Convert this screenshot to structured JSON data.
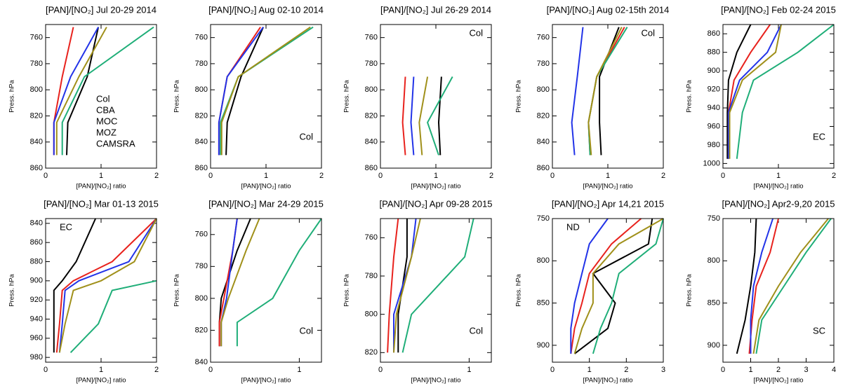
{
  "chart_data": [
    {
      "type": "line",
      "title": "[PAN]/[NO₂] Jul 20-29 2014",
      "xlabel": "[PAN]/[NO₂] ratio",
      "ylabel": "Press. hPa",
      "xlim": [
        0,
        2
      ],
      "xticks": [
        0,
        1,
        2
      ],
      "ylim": [
        860,
        750
      ],
      "yticks": [
        760,
        780,
        800,
        820,
        840,
        860
      ],
      "legend": true,
      "y": [
        752,
        790,
        825,
        850
      ],
      "series": [
        {
          "name": "Col",
          "color": "#000000",
          "values": [
            0.95,
            0.75,
            0.4,
            0.38
          ]
        },
        {
          "name": "CBA",
          "color": "#e8221d",
          "values": [
            0.5,
            0.3,
            0.15,
            0.15
          ]
        },
        {
          "name": "MOC",
          "color": "#1fae78",
          "values": [
            1.95,
            0.7,
            0.3,
            0.3
          ]
        },
        {
          "name": "MOZ",
          "color": "#2233e8",
          "values": [
            0.95,
            0.45,
            0.15,
            0.15
          ]
        },
        {
          "name": "CAMSRA",
          "color": "#a0901a",
          "values": [
            1.1,
            0.6,
            0.2,
            0.2
          ]
        }
      ]
    },
    {
      "type": "line",
      "title": "[PAN]/[NO₂] Aug 02-10 2014",
      "xlabel": "[PAN]/[NO₂] ratio",
      "ylabel": "Press. hPa",
      "xlim": [
        0,
        2
      ],
      "xticks": [
        0,
        1,
        2
      ],
      "ylim": [
        860,
        750
      ],
      "yticks": [
        760,
        780,
        800,
        820,
        840,
        860
      ],
      "annotation": "Col",
      "y": [
        752,
        790,
        825,
        850
      ],
      "series": [
        {
          "name": "Col",
          "color": "#000000",
          "values": [
            0.95,
            0.55,
            0.3,
            0.28
          ]
        },
        {
          "name": "CBA",
          "color": "#e8221d",
          "values": [
            0.9,
            0.3,
            0.15,
            0.15
          ]
        },
        {
          "name": "MOC",
          "color": "#1fae78",
          "values": [
            1.85,
            0.5,
            0.18,
            0.18
          ]
        },
        {
          "name": "MOZ",
          "color": "#2233e8",
          "values": [
            0.95,
            0.3,
            0.15,
            0.15
          ]
        },
        {
          "name": "CAMSRA",
          "color": "#a0901a",
          "values": [
            1.8,
            0.5,
            0.2,
            0.2
          ]
        }
      ]
    },
    {
      "type": "line",
      "title": "[PAN]/[NO₂] Jul 26-29 2014",
      "xlabel": "[PAN]/[NO₂] ratio",
      "ylabel": "Press. hPa",
      "xlim": [
        0,
        2
      ],
      "xticks": [
        0,
        1,
        2
      ],
      "ylim": [
        860,
        750
      ],
      "yticks": [
        760,
        780,
        800,
        820,
        840,
        860
      ],
      "annotation": "Col",
      "y": [
        790,
        825,
        850
      ],
      "series": [
        {
          "name": "Col",
          "color": "#000000",
          "values": [
            1.1,
            1.05,
            1.08
          ]
        },
        {
          "name": "CBA",
          "color": "#e8221d",
          "values": [
            0.45,
            0.4,
            0.45
          ]
        },
        {
          "name": "MOC",
          "color": "#1fae78",
          "values": [
            1.3,
            0.85,
            1.05
          ]
        },
        {
          "name": "MOZ",
          "color": "#2233e8",
          "values": [
            0.6,
            0.55,
            0.6
          ]
        },
        {
          "name": "CAMSRA",
          "color": "#a0901a",
          "values": [
            0.85,
            0.7,
            0.75
          ]
        }
      ]
    },
    {
      "type": "line",
      "title": "[PAN]/[NO₂] Aug 02-15th 2014",
      "xlabel": "[PAN]/[NO₂] ratio",
      "ylabel": "Press. hPa",
      "xlim": [
        0,
        2
      ],
      "xticks": [
        0,
        1,
        2
      ],
      "ylim": [
        860,
        750
      ],
      "yticks": [
        760,
        780,
        800,
        820,
        840,
        860
      ],
      "annotation": "Col",
      "y": [
        752,
        790,
        825,
        850
      ],
      "series": [
        {
          "name": "Col",
          "color": "#000000",
          "values": [
            1.2,
            0.85,
            0.85,
            0.88
          ]
        },
        {
          "name": "CBA",
          "color": "#e8221d",
          "values": [
            1.3,
            0.8,
            0.65,
            0.68
          ]
        },
        {
          "name": "MOC",
          "color": "#1fae78",
          "values": [
            1.35,
            0.8,
            0.65,
            0.68
          ]
        },
        {
          "name": "MOZ",
          "color": "#2233e8",
          "values": [
            0.55,
            0.45,
            0.35,
            0.4
          ]
        },
        {
          "name": "CAMSRA",
          "color": "#a0901a",
          "values": [
            1.25,
            0.8,
            0.65,
            0.7
          ]
        }
      ]
    },
    {
      "type": "line",
      "title": "[PAN]/[NO₂] Feb 02-24 2015",
      "xlabel": "[PAN]/[NO₂] ratio",
      "ylabel": "Press. hPa",
      "xlim": [
        0,
        2
      ],
      "xticks": [
        0,
        1,
        2
      ],
      "ylim": [
        1005,
        850
      ],
      "yticks": [
        860,
        880,
        900,
        920,
        940,
        960,
        980,
        1000
      ],
      "annotation": "EC",
      "y": [
        850,
        880,
        910,
        945,
        995
      ],
      "series": [
        {
          "name": "Col",
          "color": "#000000",
          "values": [
            0.5,
            0.25,
            0.1,
            0.08,
            0.08
          ]
        },
        {
          "name": "CBA",
          "color": "#e8221d",
          "values": [
            0.85,
            0.5,
            0.2,
            0.1,
            0.1
          ]
        },
        {
          "name": "MOC",
          "color": "#1fae78",
          "values": [
            2.0,
            1.35,
            0.55,
            0.35,
            0.25
          ]
        },
        {
          "name": "MOZ",
          "color": "#2233e8",
          "values": [
            1.05,
            0.8,
            0.3,
            0.1,
            0.1
          ]
        },
        {
          "name": "CAMSRA",
          "color": "#a0901a",
          "values": [
            1.05,
            0.95,
            0.35,
            0.12,
            0.12
          ]
        }
      ]
    },
    {
      "type": "line",
      "title": "[PAN]/[NO₂] Mar 01-13 2015",
      "xlabel": "[PAN]/[NO₂] ratio",
      "ylabel": "Press. hPa",
      "xlim": [
        0,
        2
      ],
      "xticks": [
        0,
        1,
        2
      ],
      "ylim": [
        985,
        835
      ],
      "yticks": [
        840,
        860,
        880,
        900,
        920,
        940,
        960,
        980
      ],
      "annotation": "EC",
      "y": [
        835,
        880,
        900,
        910,
        945,
        975
      ],
      "series": [
        {
          "name": "Col",
          "color": "#000000",
          "values": [
            0.9,
            0.55,
            0.3,
            0.15,
            0.15,
            0.15
          ]
        },
        {
          "name": "CBA",
          "color": "#e8221d",
          "values": [
            2.0,
            1.2,
            0.5,
            0.3,
            0.25,
            0.2
          ]
        },
        {
          "name": "MOC",
          "color": "#1fae78",
          "values": [
            null,
            null,
            2.0,
            1.2,
            0.95,
            0.45
          ]
        },
        {
          "name": "MOZ",
          "color": "#2233e8",
          "values": [
            2.0,
            1.5,
            0.6,
            0.35,
            0.3,
            0.25
          ]
        },
        {
          "name": "CAMSRA",
          "color": "#a0901a",
          "values": [
            2.0,
            1.6,
            1.0,
            0.5,
            0.35,
            0.25
          ]
        }
      ]
    },
    {
      "type": "line",
      "title": "[PAN]/[NO₂] Mar 24-29 2015",
      "xlabel": "[PAN]/[NO₂] ratio",
      "ylabel": "Press. hPa",
      "xlim": [
        0,
        1.25
      ],
      "xticks": [
        0,
        1
      ],
      "ylim": [
        840,
        750
      ],
      "yticks": [
        760,
        780,
        800,
        820,
        840
      ],
      "annotation": "Col",
      "y": [
        750,
        770,
        800,
        815,
        830
      ],
      "series": [
        {
          "name": "Col",
          "color": "#000000",
          "values": [
            0.45,
            0.3,
            0.12,
            0.1,
            0.1
          ]
        },
        {
          "name": "CBA",
          "color": "#e8221d",
          "values": [
            0.3,
            0.25,
            0.15,
            0.1,
            0.1
          ]
        },
        {
          "name": "MOC",
          "color": "#1fae78",
          "values": [
            1.25,
            1.0,
            0.7,
            0.3,
            0.3
          ]
        },
        {
          "name": "MOZ",
          "color": "#2233e8",
          "values": [
            0.3,
            0.25,
            0.18,
            0.12,
            0.12
          ]
        },
        {
          "name": "CAMSRA",
          "color": "#a0901a",
          "values": [
            0.55,
            0.4,
            0.2,
            0.12,
            0.12
          ]
        }
      ]
    },
    {
      "type": "line",
      "title": "[PAN]/[NO₂] Apr 09-28 2015",
      "xlabel": "[PAN]/[NO₂] ratio",
      "ylabel": "Press. hPa",
      "xlim": [
        0,
        1.25
      ],
      "xticks": [
        0,
        1
      ],
      "ylim": [
        825,
        750
      ],
      "yticks": [
        760,
        780,
        800,
        820
      ],
      "annotation": "Col",
      "y": [
        750,
        770,
        800,
        820
      ],
      "series": [
        {
          "name": "Col",
          "color": "#000000",
          "values": [
            0.3,
            0.3,
            0.2,
            0.2
          ]
        },
        {
          "name": "CBA",
          "color": "#e8221d",
          "values": [
            0.2,
            0.15,
            0.1,
            0.08
          ]
        },
        {
          "name": "MOC",
          "color": "#1fae78",
          "values": [
            1.05,
            0.95,
            0.35,
            0.25
          ]
        },
        {
          "name": "MOZ",
          "color": "#2233e8",
          "values": [
            0.4,
            0.35,
            0.15,
            0.15
          ]
        },
        {
          "name": "CAMSRA",
          "color": "#a0901a",
          "values": [
            0.45,
            0.35,
            0.18,
            0.15
          ]
        }
      ]
    },
    {
      "type": "line",
      "title": "[PAN]/[NO₂] Apr 14,21 2015",
      "xlabel": "[PAN]/[NO₂] ratio",
      "ylabel": "Press. hPa",
      "xlim": [
        0,
        3
      ],
      "xticks": [
        0,
        1,
        2,
        3
      ],
      "ylim": [
        920,
        750
      ],
      "yticks": [
        750,
        800,
        850,
        900
      ],
      "annotation": "ND",
      "y": [
        750,
        780,
        815,
        850,
        880,
        910
      ],
      "series": [
        {
          "name": "Col",
          "color": "#000000",
          "values": [
            2.7,
            2.6,
            1.1,
            1.7,
            1.5,
            0.6
          ]
        },
        {
          "name": "CBA",
          "color": "#e8221d",
          "values": [
            2.4,
            1.6,
            1.0,
            0.8,
            0.6,
            0.5
          ]
        },
        {
          "name": "MOC",
          "color": "#1fae78",
          "values": [
            3.0,
            2.8,
            1.8,
            1.6,
            1.3,
            1.1
          ]
        },
        {
          "name": "MOZ",
          "color": "#2233e8",
          "values": [
            1.5,
            1.0,
            0.8,
            0.6,
            0.5,
            0.5
          ]
        },
        {
          "name": "CAMSRA",
          "color": "#a0901a",
          "values": [
            3.0,
            1.8,
            1.1,
            1.1,
            0.8,
            0.6
          ]
        }
      ]
    },
    {
      "type": "line",
      "title": "[PAN]/[NO₂] Apr2-9,20 2015",
      "xlabel": "[PAN]/[NO₂] ratio",
      "ylabel": "Press. hPa",
      "xlim": [
        0,
        4
      ],
      "xticks": [
        0,
        1,
        2,
        3,
        4
      ],
      "ylim": [
        920,
        750
      ],
      "yticks": [
        750,
        800,
        850,
        900
      ],
      "annotation": "SC",
      "y": [
        750,
        790,
        830,
        870,
        910
      ],
      "series": [
        {
          "name": "Col",
          "color": "#000000",
          "values": [
            1.2,
            1.15,
            1.0,
            0.8,
            0.5
          ]
        },
        {
          "name": "CBA",
          "color": "#e8221d",
          "values": [
            2.0,
            1.7,
            1.2,
            1.05,
            0.95
          ]
        },
        {
          "name": "MOC",
          "color": "#1fae78",
          "values": [
            3.9,
            3.0,
            2.2,
            1.4,
            1.2
          ]
        },
        {
          "name": "MOZ",
          "color": "#2233e8",
          "values": [
            1.8,
            1.4,
            1.1,
            1.0,
            1.0
          ]
        },
        {
          "name": "CAMSRA",
          "color": "#a0901a",
          "values": [
            3.8,
            2.8,
            2.0,
            1.3,
            1.1
          ]
        }
      ]
    }
  ]
}
